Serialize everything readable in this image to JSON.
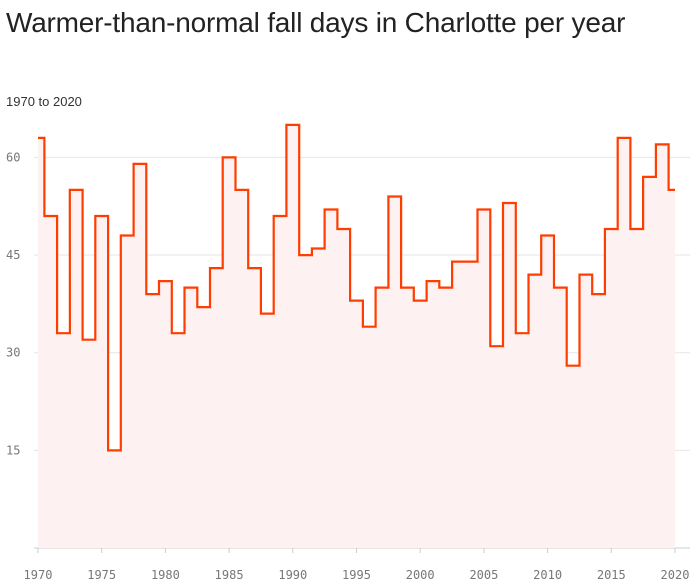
{
  "chart_data": {
    "type": "line",
    "step": "middle",
    "title": "Warmer-than-normal fall days in Charlotte per year",
    "subtitle": "1970 to 2020",
    "xlabel": "",
    "ylabel": "",
    "xlim": [
      1970,
      2020
    ],
    "ylim": [
      0,
      66
    ],
    "x_ticks": [
      "1970",
      "1975",
      "1980",
      "1985",
      "1990",
      "1995",
      "2000",
      "2005",
      "2010",
      "2015",
      "2020"
    ],
    "y_ticks": [
      "15",
      "30",
      "45",
      "60"
    ],
    "grid": "horizontal",
    "colors": {
      "line": "#ff3d00",
      "fill": "#fdf1f1",
      "grid": "#e6e6e6"
    },
    "x": [
      1970,
      1971,
      1972,
      1973,
      1974,
      1975,
      1976,
      1977,
      1978,
      1979,
      1980,
      1981,
      1982,
      1983,
      1984,
      1985,
      1986,
      1987,
      1988,
      1989,
      1990,
      1991,
      1992,
      1993,
      1994,
      1995,
      1996,
      1997,
      1998,
      1999,
      2000,
      2001,
      2002,
      2003,
      2004,
      2005,
      2006,
      2007,
      2008,
      2009,
      2010,
      2011,
      2012,
      2013,
      2014,
      2015,
      2016,
      2017,
      2018,
      2019,
      2020
    ],
    "values": [
      63,
      51,
      33,
      55,
      32,
      51,
      15,
      48,
      59,
      39,
      41,
      33,
      40,
      37,
      43,
      60,
      55,
      43,
      36,
      51,
      65,
      45,
      46,
      52,
      49,
      38,
      34,
      40,
      54,
      40,
      38,
      41,
      40,
      44,
      44,
      52,
      31,
      53,
      33,
      42,
      48,
      40,
      28,
      42,
      39,
      49,
      63,
      49,
      57,
      62,
      55
    ]
  }
}
